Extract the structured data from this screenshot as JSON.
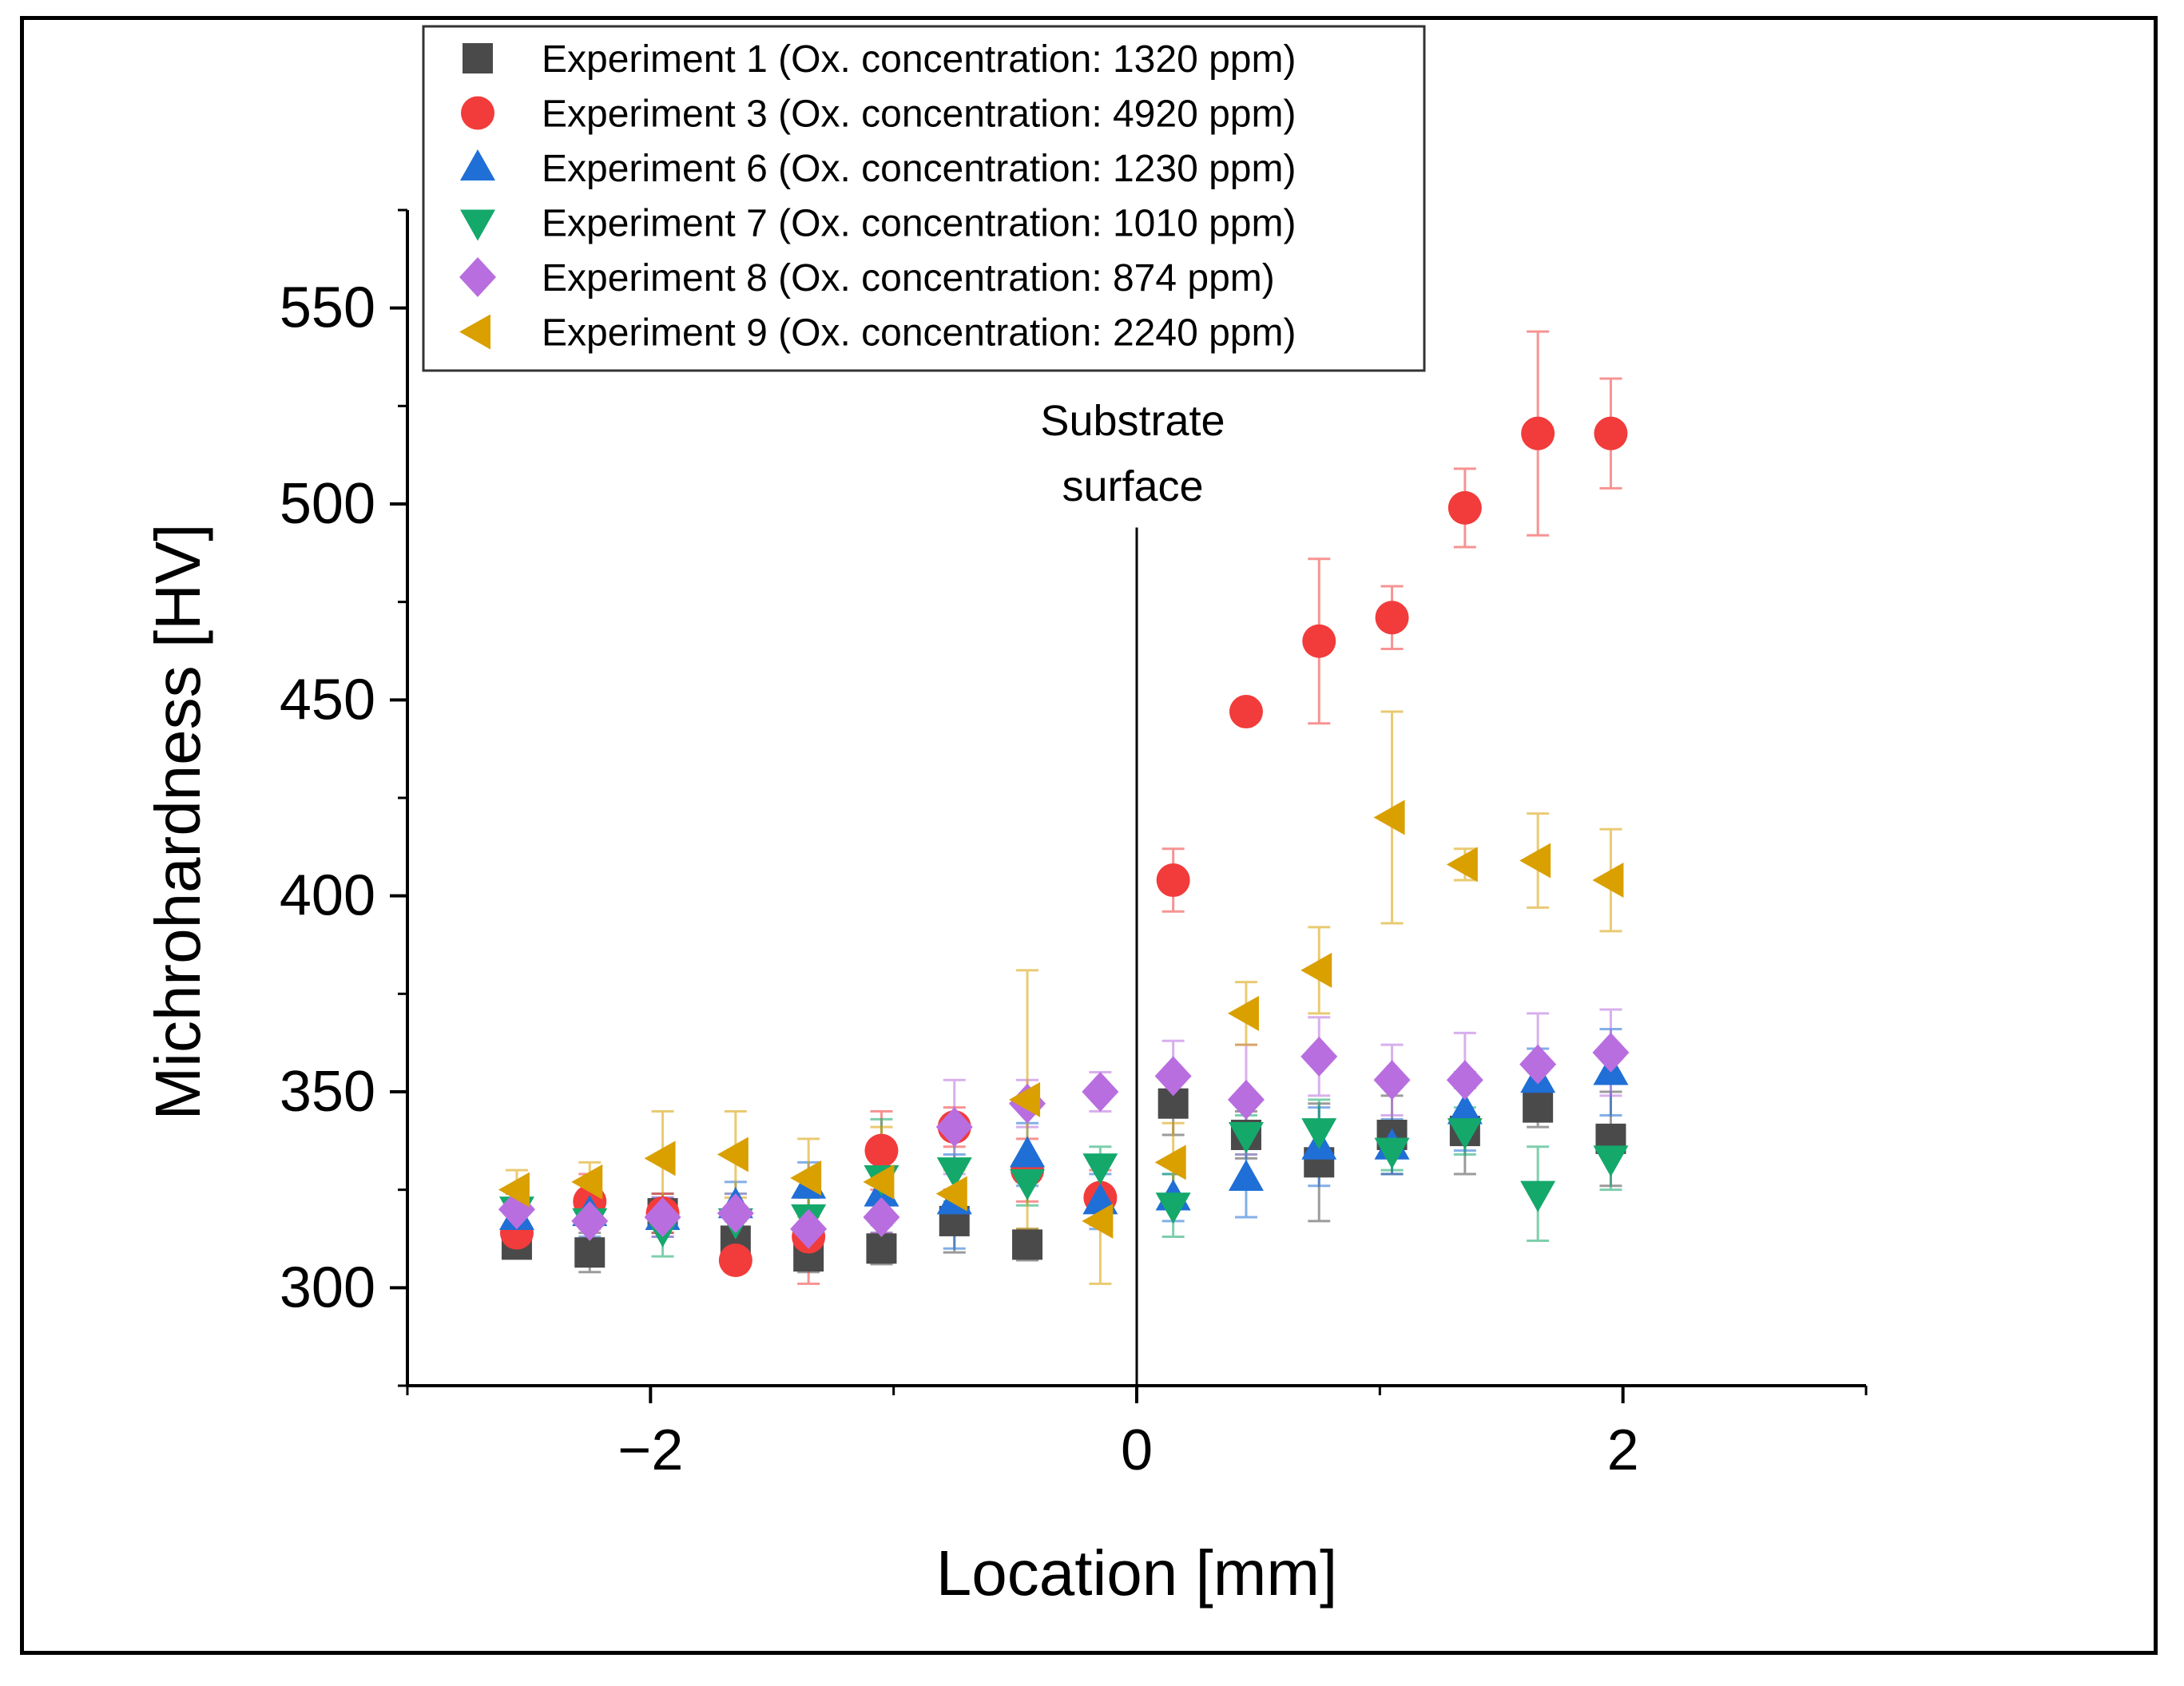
{
  "chart_data": {
    "type": "scatter",
    "xlabel": "Location [mm]",
    "ylabel": "Michrohardness [HV]",
    "xlim": [
      -3,
      3
    ],
    "ylim": [
      275,
      575
    ],
    "xticks": [
      -2,
      0,
      2
    ],
    "xtick_labels": [
      "−2",
      "0",
      "2"
    ],
    "yticks": [
      300,
      350,
      400,
      450,
      500,
      550
    ],
    "ytick_labels": [
      "300",
      "350",
      "400",
      "450",
      "500",
      "550"
    ],
    "grid": false,
    "legend_position": "top-left",
    "annotation": {
      "lines": [
        "Substrate",
        "surface"
      ],
      "x": 0,
      "y_from": 275,
      "y_to": 494
    },
    "series": [
      {
        "name": "Experiment 1 (Ox. concentration: 1320 ppm)",
        "marker": "square",
        "color": "#4a4a4a",
        "points": [
          {
            "x": -2.55,
            "y": 311,
            "err": 2
          },
          {
            "x": -2.25,
            "y": 309,
            "err": 5
          },
          {
            "x": -1.95,
            "y": 319,
            "err": 5
          },
          {
            "x": -1.65,
            "y": 312,
            "err": 5
          },
          {
            "x": -1.35,
            "y": 308,
            "err": 4
          },
          {
            "x": -1.05,
            "y": 310,
            "err": 4
          },
          {
            "x": -0.75,
            "y": 317,
            "err": 8
          },
          {
            "x": -0.45,
            "y": 311,
            "err": 4
          },
          {
            "x": 0.15,
            "y": 347,
            "err": 8
          },
          {
            "x": 0.45,
            "y": 339,
            "err": 6
          },
          {
            "x": 0.75,
            "y": 332,
            "err": 15
          },
          {
            "x": 1.05,
            "y": 339,
            "err": 10
          },
          {
            "x": 1.35,
            "y": 340,
            "err": 11
          },
          {
            "x": 1.65,
            "y": 346,
            "err": 5
          },
          {
            "x": 1.95,
            "y": 338,
            "err": 12
          }
        ]
      },
      {
        "name": "Experiment 3 (Ox. concentration: 4920 ppm)",
        "marker": "circle",
        "color": "#f23b3b",
        "points": [
          {
            "x": -2.55,
            "y": 314,
            "err": 3
          },
          {
            "x": -2.25,
            "y": 322,
            "err": 7
          },
          {
            "x": -1.95,
            "y": 319,
            "err": 5
          },
          {
            "x": -1.65,
            "y": 307,
            "err": 3
          },
          {
            "x": -1.35,
            "y": 313,
            "err": 12
          },
          {
            "x": -1.05,
            "y": 335,
            "err": 10
          },
          {
            "x": -0.75,
            "y": 341,
            "err": 5
          },
          {
            "x": -0.45,
            "y": 330,
            "err": 8
          },
          {
            "x": -0.15,
            "y": 323,
            "err": 7
          },
          {
            "x": 0.15,
            "y": 404,
            "err": 8
          },
          {
            "x": 0.45,
            "y": 447,
            "err": 2
          },
          {
            "x": 0.75,
            "y": 465,
            "err": 21
          },
          {
            "x": 1.05,
            "y": 471,
            "err": 8
          },
          {
            "x": 1.35,
            "y": 499,
            "err": 10
          },
          {
            "x": 1.65,
            "y": 518,
            "err": 26
          },
          {
            "x": 1.95,
            "y": 518,
            "err": 14
          }
        ]
      },
      {
        "name": "Experiment 6 (Ox. concentration: 1230 ppm)",
        "marker": "triangle-up",
        "color": "#1f6fd6",
        "points": [
          {
            "x": -2.55,
            "y": 318,
            "err": 4
          },
          {
            "x": -2.25,
            "y": 319,
            "err": 6
          },
          {
            "x": -1.95,
            "y": 318,
            "err": 5
          },
          {
            "x": -1.65,
            "y": 321,
            "err": 6
          },
          {
            "x": -1.35,
            "y": 326,
            "err": 6
          },
          {
            "x": -1.05,
            "y": 324,
            "err": 8
          },
          {
            "x": -0.75,
            "y": 322,
            "err": 12
          },
          {
            "x": -0.45,
            "y": 334,
            "err": 8
          },
          {
            "x": -0.15,
            "y": 322,
            "err": 7
          },
          {
            "x": 0.15,
            "y": 323,
            "err": 6
          },
          {
            "x": 0.45,
            "y": 328,
            "err": 10
          },
          {
            "x": 0.75,
            "y": 336,
            "err": 10
          },
          {
            "x": 1.05,
            "y": 336,
            "err": 7
          },
          {
            "x": 1.35,
            "y": 345,
            "err": 10
          },
          {
            "x": 1.65,
            "y": 353,
            "err": 8
          },
          {
            "x": 1.95,
            "y": 355,
            "err": 11
          }
        ]
      },
      {
        "name": "Experiment 7 (Ox. concentration: 1010 ppm)",
        "marker": "triangle-down",
        "color": "#14a86b",
        "points": [
          {
            "x": -2.55,
            "y": 320,
            "err": 4
          },
          {
            "x": -2.25,
            "y": 317,
            "err": 6
          },
          {
            "x": -1.95,
            "y": 315,
            "err": 7
          },
          {
            "x": -1.65,
            "y": 317,
            "err": 7
          },
          {
            "x": -1.35,
            "y": 318,
            "err": 5
          },
          {
            "x": -1.05,
            "y": 328,
            "err": 15
          },
          {
            "x": -0.75,
            "y": 330,
            "err": 8
          },
          {
            "x": -0.45,
            "y": 327,
            "err": 6
          },
          {
            "x": -0.15,
            "y": 331,
            "err": 5
          },
          {
            "x": 0.15,
            "y": 321,
            "err": 8
          },
          {
            "x": 0.45,
            "y": 339,
            "err": 5
          },
          {
            "x": 0.75,
            "y": 340,
            "err": 8
          },
          {
            "x": 1.05,
            "y": 335,
            "err": 5
          },
          {
            "x": 1.35,
            "y": 340,
            "err": 6
          },
          {
            "x": 1.65,
            "y": 324,
            "err": 12
          },
          {
            "x": 1.95,
            "y": 333,
            "err": 8
          }
        ]
      },
      {
        "name": "Experiment 8 (Ox. concentration: 874 ppm)",
        "marker": "diamond",
        "color": "#b96ee0",
        "points": [
          {
            "x": -2.55,
            "y": 320,
            "err": 4
          },
          {
            "x": -2.25,
            "y": 317,
            "err": 5
          },
          {
            "x": -1.95,
            "y": 318,
            "err": 5
          },
          {
            "x": -1.65,
            "y": 319,
            "err": 5
          },
          {
            "x": -1.35,
            "y": 315,
            "err": 5
          },
          {
            "x": -1.05,
            "y": 318,
            "err": 4
          },
          {
            "x": -0.75,
            "y": 341,
            "err": 12
          },
          {
            "x": -0.45,
            "y": 347,
            "err": 6
          },
          {
            "x": -0.15,
            "y": 350,
            "err": 5
          },
          {
            "x": 0.15,
            "y": 354,
            "err": 9
          },
          {
            "x": 0.45,
            "y": 348,
            "err": 14
          },
          {
            "x": 0.75,
            "y": 359,
            "err": 10
          },
          {
            "x": 1.05,
            "y": 353,
            "err": 9
          },
          {
            "x": 1.35,
            "y": 353,
            "err": 12
          },
          {
            "x": 1.65,
            "y": 357,
            "err": 13
          },
          {
            "x": 1.95,
            "y": 360,
            "err": 11
          }
        ]
      },
      {
        "name": "Experiment 9 (Ox. concentration: 2240 ppm)",
        "marker": "triangle-left",
        "color": "#d9a000",
        "points": [
          {
            "x": -2.55,
            "y": 325,
            "err": 5
          },
          {
            "x": -2.25,
            "y": 327,
            "err": 5
          },
          {
            "x": -1.95,
            "y": 333,
            "err": 12
          },
          {
            "x": -1.65,
            "y": 334,
            "err": 11
          },
          {
            "x": -1.35,
            "y": 328,
            "err": 10
          },
          {
            "x": -1.05,
            "y": 327,
            "err": 14
          },
          {
            "x": -0.75,
            "y": 324,
            "err": 6
          },
          {
            "x": -0.45,
            "y": 348,
            "err": 33
          },
          {
            "x": -0.15,
            "y": 317,
            "err": 16
          },
          {
            "x": 0.15,
            "y": 332,
            "err": 10
          },
          {
            "x": 0.45,
            "y": 370,
            "err": 8
          },
          {
            "x": 0.75,
            "y": 381,
            "err": 11
          },
          {
            "x": 1.05,
            "y": 420,
            "err": 27
          },
          {
            "x": 1.35,
            "y": 408,
            "err": 4
          },
          {
            "x": 1.65,
            "y": 409,
            "err": 12
          },
          {
            "x": 1.95,
            "y": 404,
            "err": 13
          }
        ]
      }
    ]
  }
}
